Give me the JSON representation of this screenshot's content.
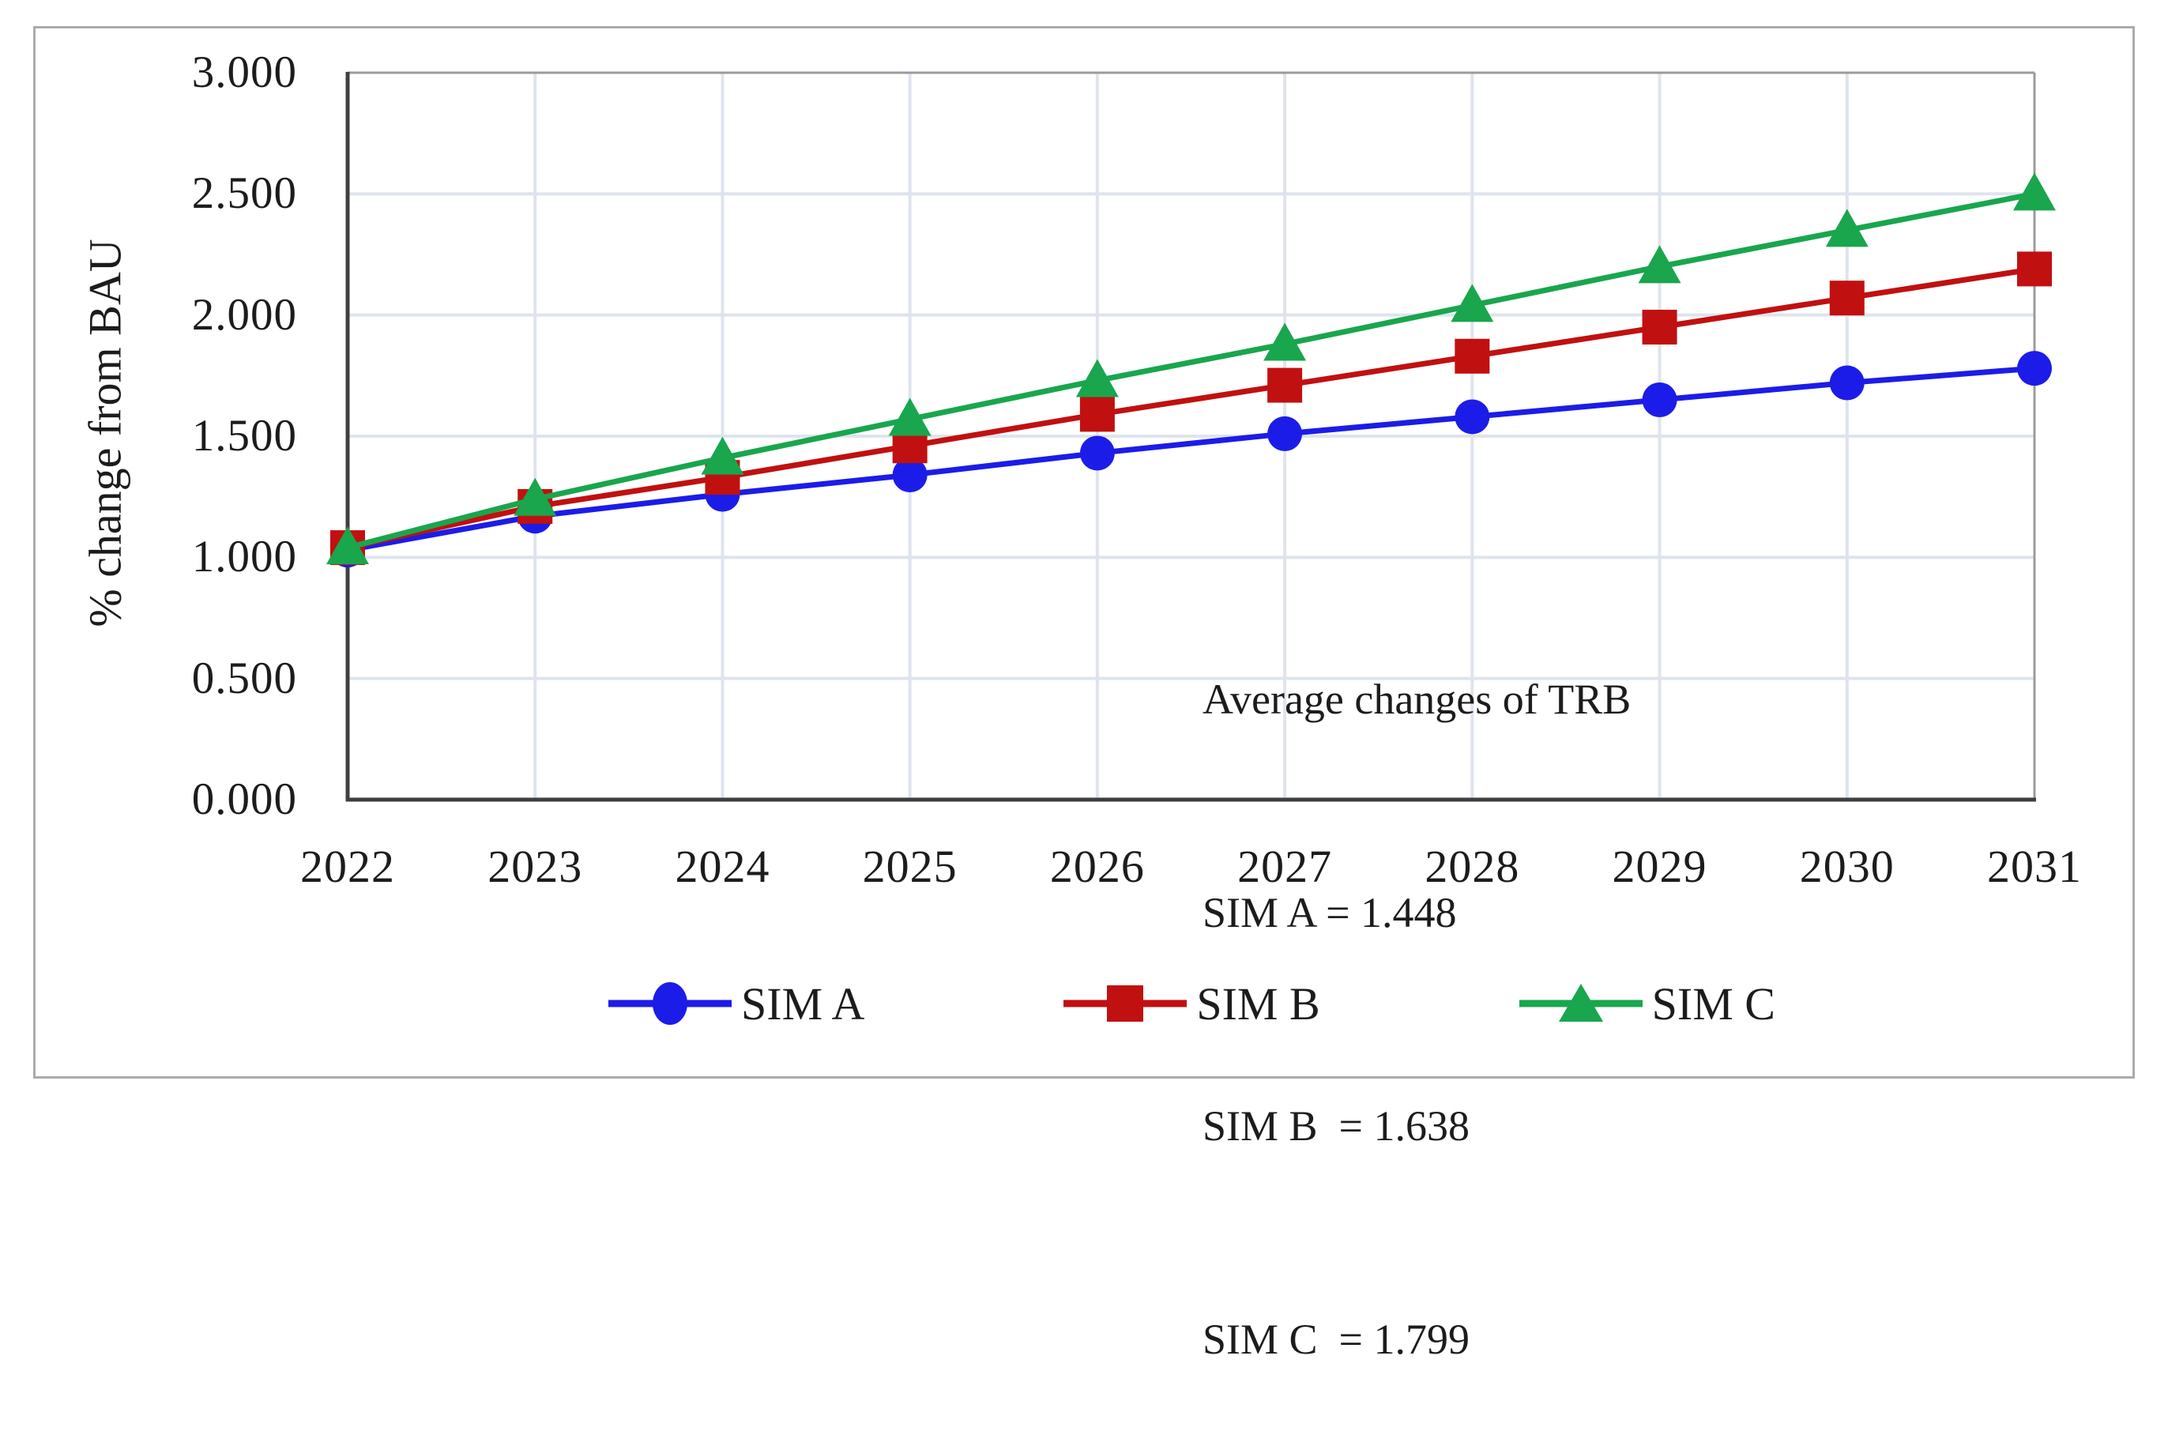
{
  "figure": {
    "background": "#ffffff",
    "frame_color": "#ababab"
  },
  "chart_data": {
    "type": "line",
    "title": "",
    "xlabel": "",
    "ylabel": "% change from BAU",
    "categories": [
      "2022",
      "2023",
      "2024",
      "2025",
      "2026",
      "2027",
      "2028",
      "2029",
      "2030",
      "2031"
    ],
    "y_tick_labels": [
      "3.000",
      "2.500",
      "2.000",
      "1.500",
      "1.000",
      "0.500",
      "0.000"
    ],
    "y_tick_values": [
      3.0,
      2.5,
      2.0,
      1.5,
      1.0,
      0.5,
      0.0
    ],
    "ylim": [
      0.0,
      3.0
    ],
    "grid": true,
    "legend_position": "bottom",
    "series": [
      {
        "name": "SIM A",
        "marker": "circle",
        "color": "#1c1ce8",
        "values": [
          1.03,
          1.17,
          1.26,
          1.34,
          1.43,
          1.51,
          1.58,
          1.65,
          1.72,
          1.78
        ]
      },
      {
        "name": "SIM B",
        "marker": "square",
        "color": "#c11010",
        "values": [
          1.04,
          1.21,
          1.33,
          1.46,
          1.59,
          1.71,
          1.83,
          1.95,
          2.07,
          2.19
        ]
      },
      {
        "name": "SIM C",
        "marker": "triangle",
        "color": "#19a64d",
        "values": [
          1.04,
          1.24,
          1.41,
          1.57,
          1.73,
          1.88,
          2.04,
          2.2,
          2.35,
          2.5
        ]
      }
    ],
    "annotation": {
      "title": "Average changes of TRB",
      "lines": [
        "SIM A = 1.448",
        "SIM B  = 1.638",
        "SIM C  = 1.799"
      ]
    },
    "colors": {
      "gridline": "#dee4ee",
      "axis_dark": "#3f3f3f",
      "border_light": "#9b9b9b"
    }
  }
}
